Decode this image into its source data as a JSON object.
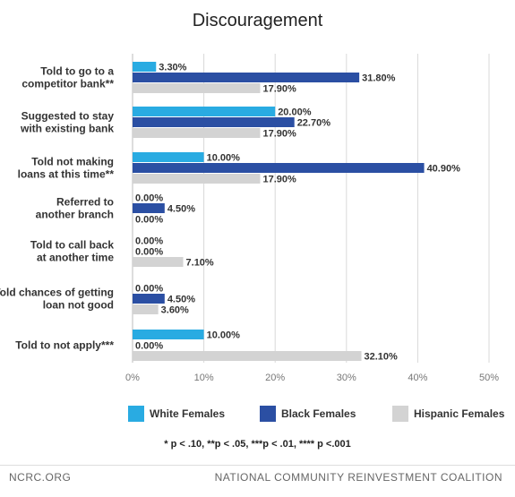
{
  "chart_data": {
    "type": "bar",
    "orientation": "horizontal",
    "title": "Discouragement",
    "categories": [
      "Told to go to a\ncompetitor bank**",
      "Suggested to stay\nwith existing bank",
      "Told not making\nloans at this time**",
      "Referred to\nanother branch",
      "Told to call back\nat another time",
      "Told chances of getting\nloan not good",
      "Told to not apply***"
    ],
    "series": [
      {
        "name": "White Females",
        "color": "#29abe2",
        "values": [
          3.3,
          20.0,
          10.0,
          0.0,
          0.0,
          0.0,
          10.0
        ],
        "labels": [
          "3.30%",
          "20.00%",
          "10.00%",
          "0.00%",
          "0.00%",
          "0.00%",
          "10.00%"
        ]
      },
      {
        "name": "Black Females",
        "color": "#2b4fa3",
        "values": [
          31.8,
          22.7,
          40.9,
          4.5,
          0.0,
          4.5,
          0.0
        ],
        "labels": [
          "31.80%",
          "22.70%",
          "40.90%",
          "4.50%",
          "0.00%",
          "4.50%",
          "0.00%"
        ]
      },
      {
        "name": "Hispanic Females",
        "color": "#d3d3d3",
        "values": [
          17.9,
          17.9,
          17.9,
          0.0,
          7.1,
          3.6,
          32.1
        ],
        "labels": [
          "17.90%",
          "17.90%",
          "17.90%",
          "0.00%",
          "7.10%",
          "3.60%",
          "32.10%"
        ]
      }
    ],
    "xlim": [
      0,
      50
    ],
    "xticks": [
      "0%",
      "10%",
      "20%",
      "30%",
      "40%",
      "50%"
    ],
    "grid": true,
    "legend_position": "bottom"
  },
  "footnote": "* p < .10, **p < .05, ***p < .01, **** p <.001",
  "footer": {
    "left": "NCRC.ORG",
    "right": "NATIONAL COMMUNITY REINVESTMENT COALITION"
  }
}
